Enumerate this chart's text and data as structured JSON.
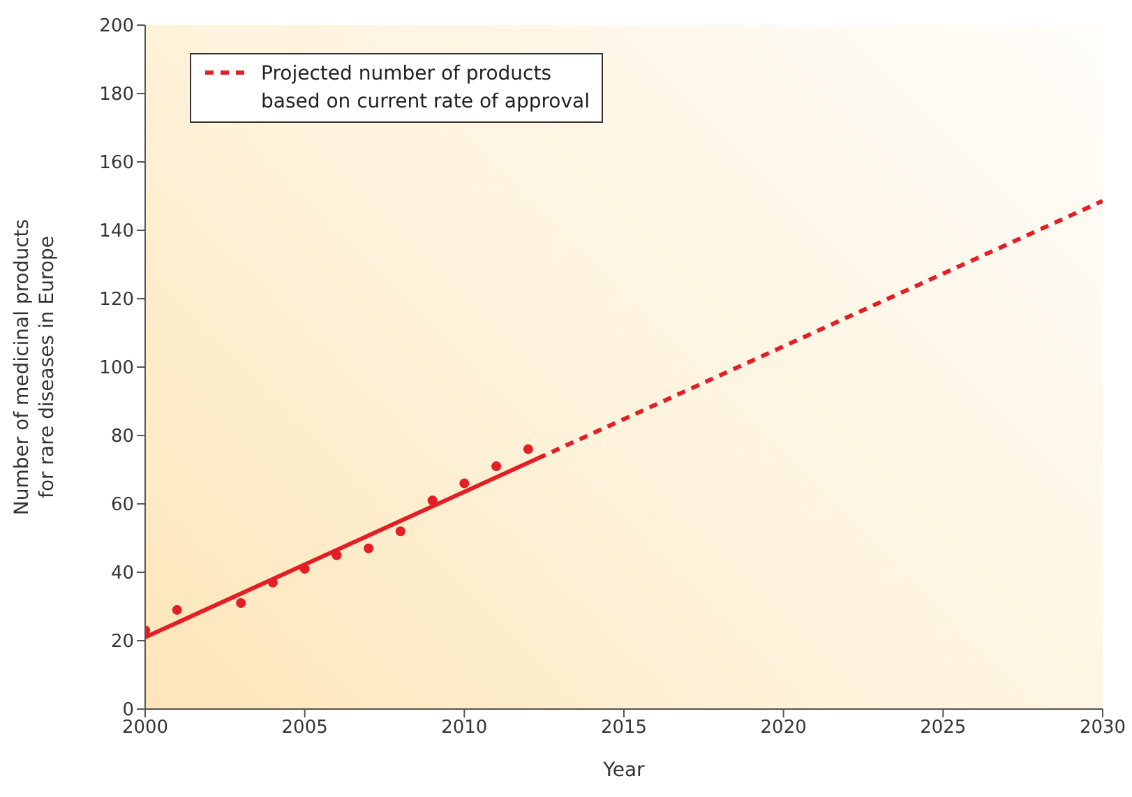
{
  "chart_data": {
    "type": "scatter",
    "xlabel": "Year",
    "ylabel": "Number of medicinal products\nfor rare diseases in Europe",
    "xlim": [
      2000,
      2030
    ],
    "xticks": [
      2000,
      2005,
      2010,
      2015,
      2020,
      2025,
      2030
    ],
    "ylim": [
      0,
      200
    ],
    "yticks": [
      0,
      20,
      40,
      60,
      80,
      100,
      120,
      140,
      160,
      180,
      200
    ],
    "grid": false,
    "legend": "top left",
    "marker": "circle",
    "series": [
      {
        "type": "scatter",
        "color": "#e31e24",
        "x": [
          2000,
          2001,
          2003,
          2004,
          2005,
          2006,
          2007,
          2008,
          2009,
          2010,
          2011,
          2012
        ],
        "values": [
          23,
          29,
          31,
          37,
          41,
          45,
          47,
          52,
          61,
          66,
          71,
          76
        ]
      },
      {
        "type": "line",
        "color": "#e31e24",
        "line_style": "solid",
        "marker": "none",
        "x": [
          2000,
          2012.3
        ],
        "values": [
          21,
          73.3
        ]
      },
      {
        "type": "line",
        "name": "Projected number of products\nbased on current rate of approval",
        "color": "#e31e24",
        "line_style": "dashed",
        "marker": "none",
        "x": [
          2012.3,
          2030
        ],
        "values": [
          73.3,
          148.6
        ]
      }
    ]
  }
}
